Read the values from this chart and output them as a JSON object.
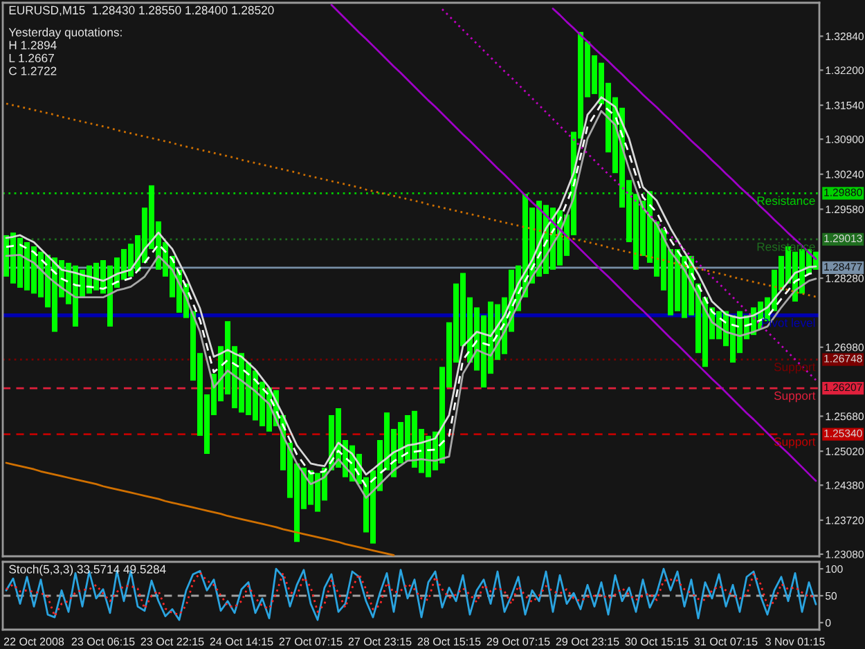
{
  "chart_data": [
    {
      "type": "bar",
      "title": "EURUSD,M15  1.28430 1.28550 1.28400 1.28520",
      "annotations": [
        "Yesterday quotations:",
        "H 1.2894",
        "L 1.2667",
        "C 1.2722",
        {
          "text": "1.29880",
          "y": 1.2988
        },
        {
          "text": "1.29013",
          "y": 1.29013
        },
        {
          "text": "1.28477",
          "y": 1.28477
        },
        {
          "text": "1.26748",
          "y": 1.26748
        },
        {
          "text": "1.26207",
          "y": 1.26207
        },
        {
          "text": "1.25340",
          "y": 1.2534
        }
      ],
      "categories": [
        null,
        null,
        null,
        null,
        null,
        null,
        null,
        null,
        null,
        null,
        null,
        null,
        null,
        null,
        null,
        null,
        null,
        null,
        null,
        null,
        null,
        null,
        null,
        null,
        null,
        null,
        null,
        null,
        null,
        null,
        null,
        null,
        null,
        null,
        null,
        null,
        null,
        null,
        null,
        null,
        null,
        null,
        null,
        null,
        null,
        null,
        null,
        null,
        null,
        null,
        null,
        null,
        null,
        null,
        null,
        null,
        null,
        null,
        null,
        null,
        null,
        null,
        null,
        null,
        null,
        null,
        null,
        null,
        null,
        null,
        null,
        null,
        null,
        null,
        null,
        null,
        null,
        null,
        null,
        null,
        null,
        null,
        null,
        null,
        null,
        null,
        null,
        null,
        null,
        null,
        null,
        null,
        null,
        null,
        null,
        null,
        null,
        null,
        null,
        null,
        null,
        null,
        null,
        null,
        null,
        null,
        null,
        null,
        null,
        null,
        null,
        null,
        null,
        null,
        null,
        null,
        null,
        null
      ],
      "ylim": [
        1.2304,
        1.3347
      ],
      "yticks": [
        {
          "value": 1.3284,
          "label": "1.32840"
        },
        {
          "value": 1.322,
          "label": "1.32200"
        },
        {
          "value": 1.3154,
          "label": "1.31540"
        },
        {
          "value": 1.309,
          "label": "1.30900"
        },
        {
          "value": 1.3024,
          "label": "1.30240"
        },
        {
          "value": 1.2958,
          "label": "1.29580"
        },
        {
          "value": 1.2828,
          "label": "1.28280"
        },
        {
          "value": 1.2698,
          "label": "1.26980"
        },
        {
          "value": 1.2568,
          "label": "1.25680"
        },
        {
          "value": 1.2502,
          "label": "1.25020"
        },
        {
          "value": 1.2438,
          "label": "1.24380"
        },
        {
          "value": 1.2372,
          "label": "1.23720"
        },
        {
          "value": 1.2308,
          "label": "1.23080"
        }
      ],
      "series": [
        {
          "type": "bar",
          "color": "#00ff00",
          "base": [
            1.2831,
            1.2818,
            1.281,
            1.2805,
            1.2799,
            1.2792,
            1.2773,
            1.2727,
            1.2792,
            1.2779,
            1.2737,
            1.2792,
            1.2799,
            1.2805,
            1.2799,
            1.2737,
            1.281,
            1.2825,
            1.2831,
            1.2841,
            1.2857,
            1.2883,
            1.2844,
            1.2831,
            1.2792,
            1.2763,
            1.2753,
            1.2635,
            1.2531,
            1.2497,
            1.257,
            1.2596,
            1.2609,
            1.2583,
            1.2575,
            1.257,
            1.256,
            1.2549,
            1.2539,
            1.2549,
            1.2466,
            1.2414,
            1.2331,
            1.2393,
            1.2401,
            1.2388,
            1.2409,
            1.2466,
            1.2471,
            1.2453,
            1.2445,
            1.244,
            1.2349,
            1.2328,
            1.2427,
            1.2466,
            1.2453,
            1.2479,
            1.2484,
            1.2471,
            1.2461,
            1.2453,
            1.2466,
            1.2479,
            1.2622,
            1.2669,
            1.27,
            1.2669,
            1.2654,
            1.2622,
            1.2648,
            1.2674,
            1.2685,
            1.2727,
            1.2766,
            1.2792,
            1.2818,
            1.2831,
            1.2836,
            1.2844,
            1.2852,
            1.287,
            1.2909,
            1.3091,
            1.3169,
            1.3175,
            1.3156,
            1.3065,
            1.3026,
            1.2961,
            1.2896,
            1.2844,
            1.287,
            1.2857,
            1.2831,
            1.2805,
            1.2758,
            1.2766,
            1.2753,
            1.2758,
            1.2687,
            1.2661,
            1.2713,
            1.2713,
            1.27,
            1.2669,
            1.2687,
            1.2713,
            1.2721,
            1.2732,
            1.2747,
            1.2766,
            1.2805,
            1.2818,
            1.2784,
            1.2799,
            1.2836,
            1.2844
          ],
          "values": [
            0.0078,
            0.0096,
            0.0094,
            0.0091,
            0.0089,
            0.0086,
            0.0099,
            0.014,
            0.007,
            0.0078,
            0.0115,
            0.0052,
            0.0053,
            0.0052,
            0.0063,
            0.0115,
            0.0057,
            0.0058,
            0.0062,
            0.0068,
            0.0104,
            0.012,
            0.0091,
            0.0065,
            0.0078,
            0.0081,
            0.0065,
            0.0131,
            0.0156,
            0.0112,
            0.0078,
            0.0104,
            0.0138,
            0.0117,
            0.0112,
            0.0099,
            0.0094,
            0.0084,
            0.0083,
            0.0068,
            0.0104,
            0.0104,
            0.0148,
            0.0078,
            0.0065,
            0.0073,
            0.0062,
            0.0104,
            0.0112,
            0.007,
            0.0068,
            0.0057,
            0.0104,
            0.0138,
            0.0096,
            0.0109,
            0.0091,
            0.0078,
            0.0086,
            0.0107,
            0.0083,
            0.0078,
            0.0073,
            0.0182,
            0.0123,
            0.0149,
            0.0138,
            0.0123,
            0.0119,
            0.0136,
            0.0136,
            0.0105,
            0.0107,
            0.0117,
            0.0086,
            0.0195,
            0.0143,
            0.0143,
            0.013,
            0.0117,
            0.0104,
            0.0078,
            0.0195,
            0.0201,
            0.0105,
            0.0073,
            0.0078,
            0.0131,
            0.0143,
            0.0188,
            0.0117,
            0.0143,
            0.0104,
            0.0135,
            0.0104,
            0.0117,
            0.0125,
            0.0117,
            0.0117,
            0.0112,
            0.0131,
            0.0131,
            0.006,
            0.0053,
            0.0066,
            0.0089,
            0.0079,
            0.0045,
            0.0052,
            0.0052,
            0.0045,
            0.0078,
            0.0065,
            0.007,
            0.0094,
            0.0084,
            0.0047,
            0.0034
          ]
        },
        {
          "type": "line",
          "color": "#d8d8d8",
          "values": [
            1.2904,
            1.2906,
            1.2909,
            1.2902,
            1.2896,
            1.2883,
            1.287,
            1.2857,
            1.2844,
            1.2841,
            1.2838,
            1.2834,
            1.2831,
            1.2827,
            1.2823,
            1.2829,
            1.2836,
            1.284,
            1.2844,
            1.2863,
            1.2883,
            1.2898,
            1.2914,
            1.2898,
            1.2883,
            1.2857,
            1.2831,
            1.2801,
            1.2771,
            1.2725,
            1.268,
            1.2686,
            1.2693,
            1.2686,
            1.268,
            1.2668,
            1.2656,
            1.2639,
            1.2622,
            1.2596,
            1.257,
            1.2541,
            1.2513,
            1.2496,
            1.2479,
            1.2476,
            1.2474,
            1.2496,
            1.2518,
            1.2507,
            1.2497,
            1.2477,
            1.2458,
            1.2468,
            1.2479,
            1.2489,
            1.25,
            1.2506,
            1.2513,
            1.2515,
            1.2518,
            1.2522,
            1.2526,
            1.2548,
            1.257,
            1.2635,
            1.27,
            1.2713,
            1.2727,
            1.2723,
            1.2719,
            1.2738,
            1.2758,
            1.2788,
            1.2818,
            1.284,
            1.2862,
            1.2892,
            1.2922,
            1.2941,
            1.2961,
            1.2993,
            1.3026,
            1.3081,
            1.3136,
            1.3152,
            1.3169,
            1.316,
            1.3151,
            1.3121,
            1.3091,
            1.3045,
            1.3,
            1.2987,
            1.2974,
            1.2948,
            1.2922,
            1.29,
            1.2878,
            1.2857,
            1.2836,
            1.281,
            1.2784,
            1.2772,
            1.276,
            1.2756,
            1.2753,
            1.2755,
            1.2758,
            1.2765,
            1.2773,
            1.2789,
            1.2805,
            1.2821,
            1.2838,
            1.2843,
            1.2849,
            1.285
          ]
        },
        {
          "type": "line",
          "color": "#ffffff",
          "line_style": "dashed",
          "values": [
            1.2887,
            1.2889,
            1.2891,
            1.2884,
            1.2877,
            1.2864,
            1.2851,
            1.2839,
            1.2827,
            1.2821,
            1.2815,
            1.2813,
            1.2812,
            1.281,
            1.2808,
            1.2814,
            1.2821,
            1.2824,
            1.2828,
            1.2842,
            1.2857,
            1.2874,
            1.2892,
            1.2878,
            1.2864,
            1.2838,
            1.2812,
            1.278,
            1.2749,
            1.27,
            1.2651,
            1.2662,
            1.2674,
            1.2666,
            1.2658,
            1.2647,
            1.2636,
            1.2621,
            1.2607,
            1.2579,
            1.2551,
            1.2523,
            1.2496,
            1.2478,
            1.246,
            1.2462,
            1.2464,
            1.2483,
            1.2503,
            1.249,
            1.2478,
            1.2457,
            1.2436,
            1.2448,
            1.246,
            1.2471,
            1.2483,
            1.2491,
            1.2499,
            1.2501,
            1.2503,
            1.2504,
            1.2505,
            1.2518,
            1.2531,
            1.2602,
            1.2674,
            1.2692,
            1.271,
            1.2705,
            1.2701,
            1.2722,
            1.2743,
            1.2771,
            1.2799,
            1.2823,
            1.2847,
            1.2871,
            1.2896,
            1.2917,
            1.2938,
            1.297,
            1.3003,
            1.3058,
            1.3114,
            1.3135,
            1.3156,
            1.3145,
            1.3134,
            1.3098,
            1.3063,
            1.3022,
            1.2981,
            1.2966,
            1.2952,
            1.2926,
            1.29,
            1.288,
            1.2861,
            1.2838,
            1.2815,
            1.279,
            1.2765,
            1.2754,
            1.2744,
            1.274,
            1.2736,
            1.2739,
            1.2743,
            1.2749,
            1.2755,
            1.2772,
            1.2789,
            1.2805,
            1.2822,
            1.2829,
            1.2836,
            1.2839
          ]
        },
        {
          "type": "line",
          "color": "#a8a8a8",
          "values": [
            1.287,
            1.2871,
            1.2872,
            1.2864,
            1.2857,
            1.2844,
            1.2831,
            1.282,
            1.281,
            1.2801,
            1.2792,
            1.2792,
            1.2792,
            1.2792,
            1.2792,
            1.2798,
            1.2805,
            1.2808,
            1.2812,
            1.2821,
            1.2831,
            1.285,
            1.287,
            1.2857,
            1.2844,
            1.2818,
            1.2792,
            1.2759,
            1.2727,
            1.2674,
            1.2622,
            1.2638,
            1.2654,
            1.2644,
            1.2635,
            1.2625,
            1.2615,
            1.2603,
            1.2591,
            1.2561,
            1.2531,
            1.2505,
            1.2479,
            1.2459,
            1.244,
            1.2446,
            1.2453,
            1.247,
            1.2487,
            1.2472,
            1.2458,
            1.2436,
            1.2414,
            1.2427,
            1.244,
            1.2453,
            1.2466,
            1.2475,
            1.2484,
            1.2485,
            1.2487,
            1.2485,
            1.2484,
            1.2488,
            1.2492,
            1.257,
            1.2648,
            1.267,
            1.2693,
            1.2687,
            1.2682,
            1.2704,
            1.2727,
            1.2753,
            1.2779,
            1.2805,
            1.2831,
            1.285,
            1.287,
            1.2892,
            1.2914,
            1.2946,
            1.2979,
            1.3035,
            1.3091,
            1.3117,
            1.3143,
            1.313,
            1.3117,
            1.3075,
            1.3034,
            1.2997,
            1.2961,
            1.2945,
            1.293,
            1.2904,
            1.2878,
            1.2861,
            1.2844,
            1.2819,
            1.2794,
            1.2769,
            1.2745,
            1.2736,
            1.2727,
            1.2723,
            1.2719,
            1.2723,
            1.2727,
            1.2732,
            1.2737,
            1.2755,
            1.2773,
            1.2789,
            1.2805,
            1.2814,
            1.2823,
            1.2827
          ]
        },
        {
          "type": "line",
          "color": "#a000c8",
          "values": [
            null,
            null,
            null,
            null,
            null,
            null,
            null,
            null,
            null,
            null,
            null,
            null,
            null,
            null,
            null,
            null,
            null,
            null,
            null,
            null,
            null,
            null,
            null,
            null,
            null,
            null,
            null,
            null,
            null,
            null,
            null,
            null,
            null,
            null,
            null,
            null,
            null,
            null,
            null,
            null,
            null,
            null,
            null,
            null,
            null,
            null,
            null,
            null,
            null,
            null,
            null,
            null,
            null,
            null,
            null,
            null,
            null,
            null,
            null,
            null,
            null,
            null,
            null,
            null,
            null,
            null,
            null,
            null,
            null,
            null,
            null,
            null,
            null,
            null,
            null,
            null,
            null,
            null,
            null,
            1.3336,
            1.3324,
            1.3311,
            1.3299,
            1.3286,
            1.3274,
            1.3261,
            1.3249,
            1.3237,
            1.3224,
            1.3212,
            1.3199,
            1.3187,
            1.3174,
            1.3162,
            1.315,
            1.3137,
            1.3125,
            1.3112,
            1.31,
            1.3087,
            1.3075,
            1.3063,
            1.305,
            1.3038,
            1.3025,
            1.3013,
            1.3,
            1.2988,
            1.2976,
            1.2963,
            1.2951,
            1.2938,
            1.2926,
            1.2913,
            1.2901,
            1.2889,
            1.2876,
            1.2864
          ]
        },
        {
          "type": "line",
          "color": "#a000c8",
          "values": [
            null,
            null,
            null,
            null,
            null,
            null,
            null,
            null,
            null,
            null,
            null,
            null,
            null,
            null,
            null,
            null,
            null,
            null,
            null,
            null,
            null,
            null,
            null,
            null,
            null,
            null,
            null,
            null,
            null,
            null,
            null,
            null,
            null,
            null,
            null,
            null,
            null,
            null,
            null,
            null,
            null,
            null,
            null,
            null,
            null,
            null,
            null,
            1.3343,
            1.333,
            1.3317,
            1.3304,
            1.3291,
            1.3279,
            1.3266,
            1.3253,
            1.324,
            1.3227,
            1.3215,
            1.3202,
            1.3189,
            1.3176,
            1.3163,
            1.3151,
            1.3138,
            1.3125,
            1.3112,
            1.3099,
            1.3087,
            1.3074,
            1.3061,
            1.3048,
            1.3035,
            1.3023,
            1.301,
            1.2997,
            1.2984,
            1.2971,
            1.2959,
            1.2946,
            1.2933,
            1.292,
            1.2907,
            1.2895,
            1.2882,
            1.2869,
            1.2856,
            1.2843,
            1.2831,
            1.2818,
            1.2805,
            1.2792,
            1.2779,
            1.2767,
            1.2754,
            1.2741,
            1.2728,
            1.2715,
            1.2703,
            1.269,
            1.2677,
            1.2664,
            1.2651,
            1.2638,
            1.2626,
            1.2613,
            1.26,
            1.2587,
            1.2574,
            1.2562,
            1.2549,
            1.2536,
            1.2523,
            1.251,
            1.2498,
            1.2485,
            1.2472,
            1.2459,
            1.2446
          ]
        },
        {
          "type": "line",
          "color": "#c000c0",
          "line_style": "dotted",
          "values": [
            null,
            null,
            null,
            null,
            null,
            null,
            null,
            null,
            null,
            null,
            null,
            null,
            null,
            null,
            null,
            null,
            null,
            null,
            null,
            null,
            null,
            null,
            null,
            null,
            null,
            null,
            null,
            null,
            null,
            null,
            null,
            null,
            null,
            null,
            null,
            null,
            null,
            null,
            null,
            null,
            null,
            null,
            null,
            null,
            null,
            null,
            null,
            null,
            null,
            null,
            null,
            null,
            null,
            null,
            null,
            null,
            null,
            null,
            null,
            null,
            null,
            null,
            null,
            1.3335,
            1.3322,
            1.3309,
            1.3296,
            1.3283,
            1.327,
            1.3257,
            1.3244,
            1.3231,
            1.3218,
            1.3206,
            1.3193,
            1.318,
            1.3167,
            1.3154,
            1.3141,
            1.3128,
            1.3115,
            1.3102,
            1.3089,
            1.3076,
            1.3063,
            1.305,
            1.3037,
            1.3024,
            1.3012,
            1.2999,
            1.2986,
            1.2973,
            1.296,
            1.2947,
            1.2934,
            1.2921,
            1.2908,
            1.2895,
            1.2882,
            1.2869,
            1.2856,
            1.2843,
            1.283,
            1.2818,
            1.2805,
            1.2792,
            1.2779,
            1.2766,
            1.2753,
            1.274,
            1.2727,
            1.2714,
            1.2701,
            1.2688,
            1.2675,
            1.2662,
            1.2649,
            1.2636
          ]
        },
        {
          "type": "line",
          "color": "#d07000",
          "line_style": "dotted",
          "values": [
            1.3157,
            1.3154,
            1.3151,
            1.3148,
            1.3145,
            1.3142,
            1.3139,
            1.3136,
            1.3132,
            1.3129,
            1.3126,
            1.3123,
            1.312,
            1.3117,
            1.3114,
            1.3111,
            1.3107,
            1.3104,
            1.3101,
            1.3098,
            1.3095,
            1.3092,
            1.3089,
            1.3086,
            1.3083,
            1.3079,
            1.3076,
            1.3073,
            1.307,
            1.3067,
            1.3064,
            1.3061,
            1.3058,
            1.3055,
            1.3051,
            1.3048,
            1.3045,
            1.3042,
            1.3039,
            1.3036,
            1.3033,
            1.303,
            1.3027,
            1.3023,
            1.302,
            1.3017,
            1.3014,
            1.3011,
            1.3008,
            1.3005,
            1.3002,
            1.2999,
            1.2995,
            1.2992,
            1.2989,
            1.2986,
            1.2983,
            1.298,
            1.2977,
            1.2974,
            1.2971,
            1.2967,
            1.2964,
            1.2961,
            1.2958,
            1.2955,
            1.2952,
            1.2949,
            1.2946,
            1.2943,
            1.2939,
            1.2936,
            1.2933,
            1.293,
            1.2927,
            1.2924,
            1.2921,
            1.2918,
            1.2914,
            1.2911,
            1.2908,
            1.2905,
            1.2902,
            1.2899,
            1.2896,
            1.2893,
            1.289,
            1.2886,
            1.2883,
            1.288,
            1.2877,
            1.2874,
            1.2871,
            1.2868,
            1.2865,
            1.2862,
            1.2858,
            1.2855,
            1.2852,
            1.2849,
            1.2846,
            1.2843,
            1.284,
            1.2837,
            1.2834,
            1.283,
            1.2827,
            1.2824,
            1.2821,
            1.2818,
            1.2815,
            1.2812,
            1.2809,
            1.2806,
            1.2802,
            1.2799,
            1.2796,
            1.2793
          ]
        },
        {
          "type": "line",
          "color": "#d07000",
          "values": [
            1.248,
            1.2477,
            1.2474,
            1.2471,
            1.2468,
            1.2464,
            1.2461,
            1.2458,
            1.2455,
            1.2452,
            1.2449,
            1.2446,
            1.2443,
            1.244,
            1.2436,
            1.2433,
            1.243,
            1.2427,
            1.2424,
            1.2421,
            1.2418,
            1.2415,
            1.2412,
            1.2408,
            1.2405,
            1.2402,
            1.2399,
            1.2396,
            1.2393,
            1.239,
            1.2387,
            1.2384,
            1.238,
            1.2377,
            1.2374,
            1.2371,
            1.2368,
            1.2365,
            1.2362,
            1.2359,
            1.2355,
            1.2352,
            1.2349,
            1.2346,
            1.2343,
            1.234,
            1.2337,
            1.2334,
            1.2331,
            1.2327,
            1.2324,
            1.2321,
            1.2318,
            1.2315,
            1.2312,
            1.2309,
            1.2306,
            null,
            null,
            null,
            null,
            null,
            null,
            null,
            null,
            null,
            null,
            null,
            null,
            null,
            null,
            null,
            null,
            null,
            null,
            null,
            null,
            null,
            null,
            null,
            null,
            null,
            null,
            null,
            null,
            null,
            null,
            null,
            null,
            null,
            null,
            null,
            null,
            null,
            null,
            null,
            null,
            null,
            null,
            null,
            null,
            null,
            null,
            null,
            null,
            null,
            null,
            null,
            null,
            null,
            null,
            null,
            null,
            null,
            null,
            null,
            null,
            null
          ]
        }
      ],
      "ref_lines": [
        {
          "axis": "y",
          "value": 1.2988,
          "label": "Resistance",
          "color": "#00d000",
          "line_style": "dotted"
        },
        {
          "axis": "y",
          "value": 1.29013,
          "label": "Resistance",
          "color": "#1f6e1f",
          "line_style": "dotted"
        },
        {
          "axis": "y",
          "value": 1.28477,
          "color": "#7890a8",
          "line_style": "solid"
        },
        {
          "axis": "y",
          "value": 1.2758,
          "label": "Pivot level",
          "color": "#0000b0",
          "line_style": "solid"
        },
        {
          "axis": "y",
          "value": 1.26748,
          "label": "Support",
          "color": "#7a0000",
          "line_style": "dotted"
        },
        {
          "axis": "y",
          "value": 1.26207,
          "label": "Support",
          "color": "#e0203c",
          "line_style": "dashed"
        },
        {
          "axis": "y",
          "value": 1.2534,
          "label": "Support",
          "color": "#c00000",
          "line_style": "dashed"
        }
      ]
    },
    {
      "type": "line",
      "title": "Stoch(5,3,3) 33.5714 49.5284",
      "categories": [
        null,
        null,
        null,
        null,
        "22 Oct 2008",
        null,
        null,
        null,
        null,
        null,
        null,
        null,
        null,
        null,
        "23 Oct 06:15",
        null,
        null,
        null,
        null,
        null,
        null,
        null,
        null,
        null,
        "23 Oct 22:15",
        null,
        null,
        null,
        null,
        null,
        null,
        null,
        null,
        null,
        "24 Oct 14:15",
        null,
        null,
        null,
        null,
        null,
        null,
        null,
        null,
        null,
        "27 Oct 07:15",
        null,
        null,
        null,
        null,
        null,
        null,
        null,
        null,
        null,
        "27 Oct 23:15",
        null,
        null,
        null,
        null,
        null,
        null,
        null,
        null,
        null,
        "28 Oct 15:15",
        null,
        null,
        null,
        null,
        null,
        null,
        null,
        null,
        null,
        "29 Oct 07:15",
        null,
        null,
        null,
        null,
        null,
        null,
        null,
        null,
        null,
        "29 Oct 23:15",
        null,
        null,
        null,
        null,
        null,
        null,
        null,
        null,
        null,
        "30 Oct 15:15",
        null,
        null,
        null,
        null,
        null,
        null,
        null,
        null,
        null,
        "31 Oct 07:15",
        null,
        null,
        null,
        null,
        null,
        null,
        null,
        null,
        null,
        "3 Nov 01:15",
        null,
        null,
        null
      ],
      "ylim": [
        -13,
        113
      ],
      "yticks": [
        0,
        50,
        100
      ],
      "series": [
        {
          "color": "#2aa4e0",
          "values": [
            60,
            82,
            35,
            85,
            30,
            80,
            15,
            10,
            60,
            20,
            92,
            30,
            95,
            45,
            62,
            18,
            96,
            40,
            96,
            30,
            22,
            78,
            40,
            12,
            25,
            5,
            60,
            90,
            96,
            60,
            80,
            22,
            40,
            18,
            62,
            75,
            18,
            45,
            8,
            100,
            85,
            30,
            70,
            98,
            35,
            5,
            65,
            90,
            20,
            35,
            95,
            85,
            40,
            10,
            55,
            92,
            20,
            98,
            45,
            80,
            10,
            75,
            95,
            28,
            65,
            40,
            88,
            15,
            60,
            80,
            35,
            95,
            20,
            50,
            85,
            15,
            60,
            40,
            95,
            20,
            88,
            35,
            55,
            25,
            70,
            30,
            75,
            15,
            88,
            40,
            65,
            20,
            80,
            28,
            55,
            100,
            60,
            95,
            30,
            80,
            8,
            75,
            45,
            90,
            30,
            70,
            20,
            85,
            95,
            50,
            15,
            60,
            85,
            40,
            92,
            20,
            75,
            34
          ]
        },
        {
          "color": "#ff2828",
          "line_style": "dotted",
          "values": [
            62,
            71,
            58,
            60,
            57,
            55,
            48,
            12,
            35,
            40,
            56,
            61,
            62,
            70,
            54,
            40,
            57,
            68,
            68,
            63,
            26,
            50,
            59,
            26,
            18,
            15,
            32,
            75,
            93,
            78,
            70,
            51,
            31,
            29,
            40,
            68,
            46,
            31,
            26,
            54,
            92,
            57,
            50,
            84,
            66,
            20,
            35,
            78,
            55,
            28,
            65,
            90,
            62,
            25,
            32,
            74,
            56,
            59,
            72,
            62,
            45,
            42,
            85,
            62,
            46,
            52,
            64,
            52,
            38,
            70,
            58,
            65,
            58,
            35,
            68,
            50,
            38,
            50,
            68,
            58,
            54,
            62,
            45,
            40,
            48,
            50,
            52,
            45,
            52,
            64,
            52,
            42,
            50,
            54,
            42,
            78,
            80,
            78,
            62,
            55,
            44,
            42,
            60,
            68,
            60,
            50,
            45,
            52,
            90,
            72,
            32,
            38,
            72,
            62,
            66,
            56,
            48,
            50
          ]
        }
      ],
      "ref_lines": [
        {
          "axis": "y",
          "value": 50,
          "color": "#a0a0a0",
          "line_style": "dashed"
        }
      ]
    }
  ]
}
